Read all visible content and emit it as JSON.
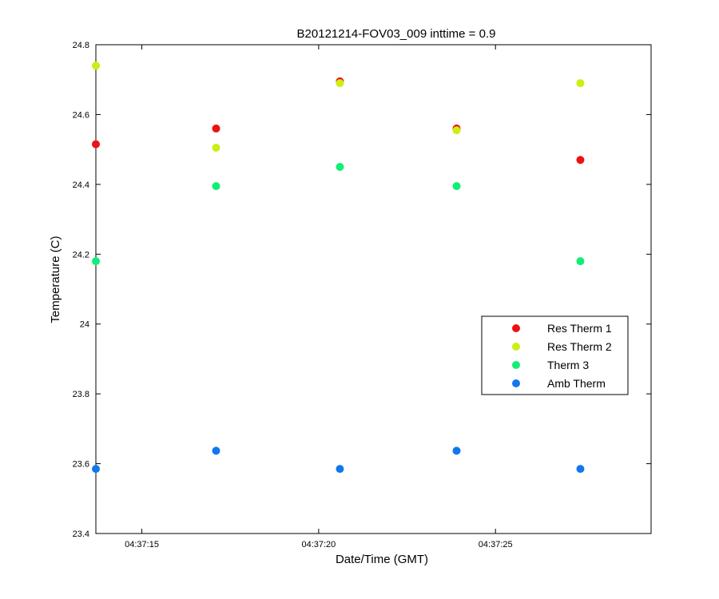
{
  "chart_data": {
    "type": "scatter",
    "title": "B20121214-FOV03_009 inttime = 0.9",
    "xlabel": "Date/Time (GMT)",
    "ylabel": "Temperature (C)",
    "x_unit": "time",
    "xlim": [
      "04:37:13.7",
      "04:37:29.4"
    ],
    "ylim": [
      23.4,
      24.8
    ],
    "x_ticks": [
      "04:37:15",
      "04:37:20",
      "04:37:25"
    ],
    "y_ticks": [
      "23.4",
      "23.6",
      "23.8",
      "24",
      "24.2",
      "24.4",
      "24.6",
      "24.8"
    ],
    "grid": false,
    "legend_position": "middle-right",
    "x": [
      "04:37:13.7",
      "04:37:17.1",
      "04:37:20.6",
      "04:37:23.9",
      "04:37:27.4"
    ],
    "series": [
      {
        "name": "Res Therm 1",
        "color": "#ee1111",
        "values": [
          24.515,
          24.56,
          24.695,
          24.56,
          24.47
        ]
      },
      {
        "name": "Res Therm 2",
        "color": "#ccee11",
        "values": [
          24.74,
          24.505,
          24.69,
          24.555,
          24.69
        ]
      },
      {
        "name": "Therm 3",
        "color": "#11ee77",
        "values": [
          24.18,
          24.395,
          24.45,
          24.395,
          24.18
        ]
      },
      {
        "name": "Amb Therm",
        "color": "#1177ee",
        "values": [
          23.585,
          23.637,
          23.585,
          23.637,
          23.585
        ]
      }
    ]
  }
}
